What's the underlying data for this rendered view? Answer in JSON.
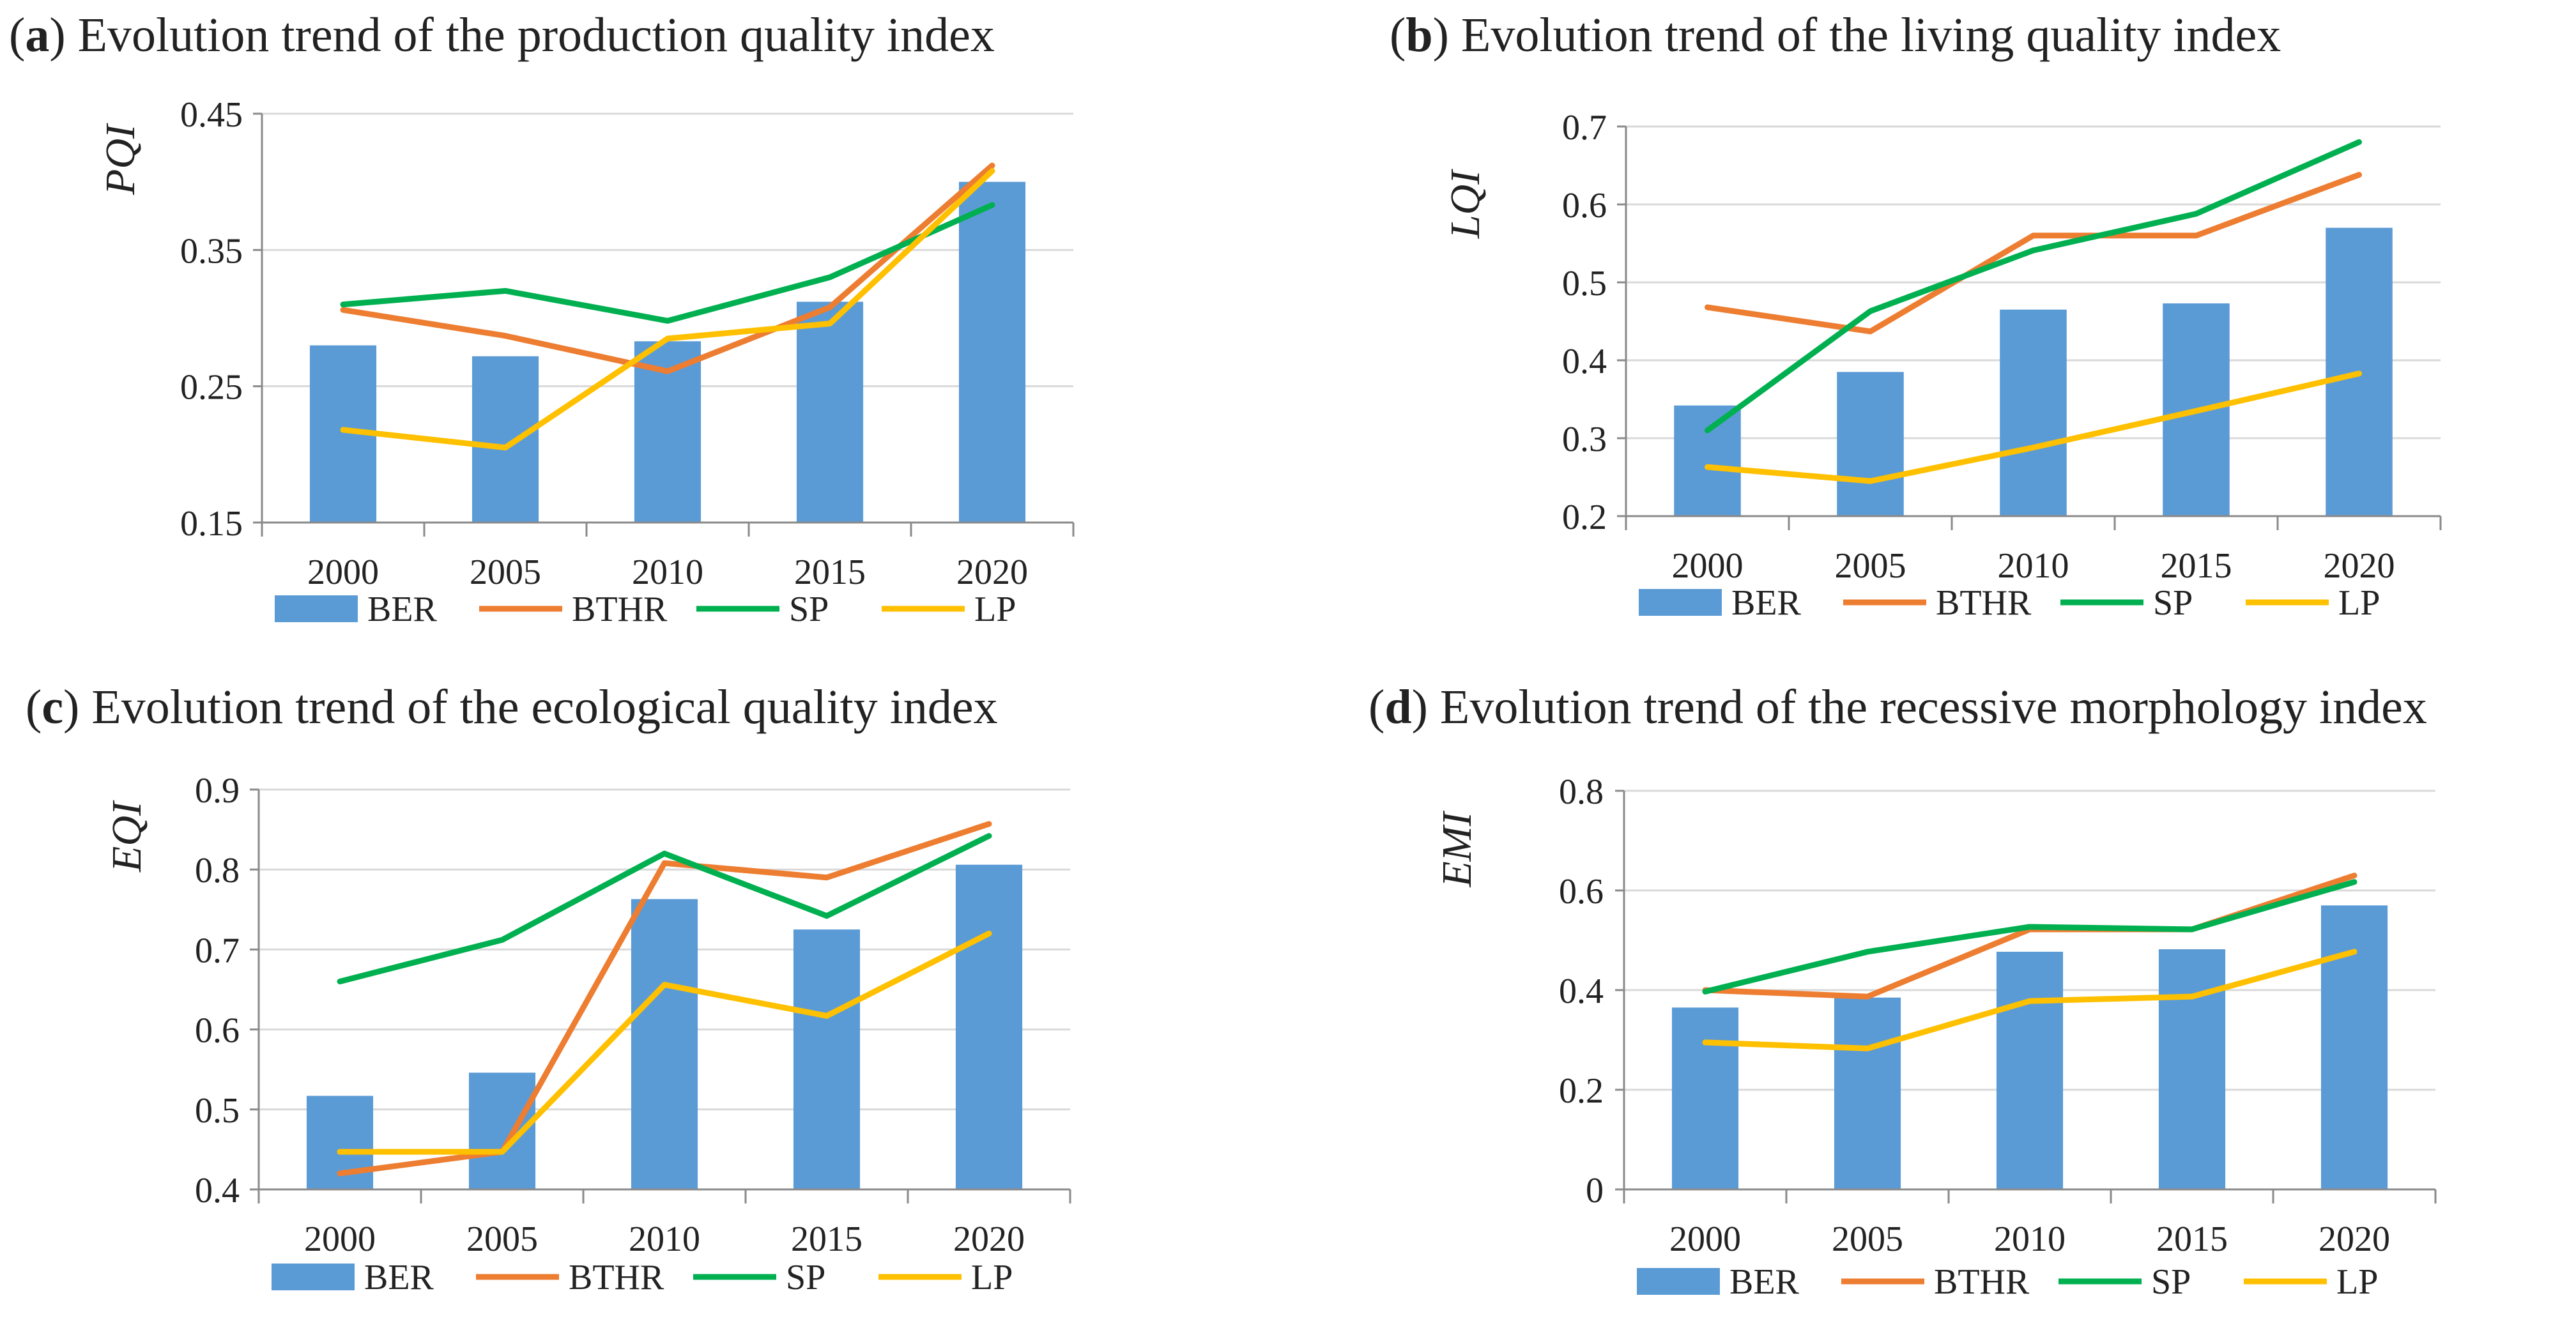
{
  "colors": {
    "BER": "#5b9bd5",
    "BTHR": "#ed7d31",
    "SP": "#00b050",
    "LP": "#ffc000"
  },
  "chart_data": [
    {
      "type": "bar+line",
      "panel_letter": "a",
      "title": "Evolution trend of the production quality index",
      "ylabel": "PQI",
      "categories": [
        "2000",
        "2005",
        "2010",
        "2015",
        "2020"
      ],
      "ylim": [
        0.15,
        0.45
      ],
      "yticks": [
        "0.15",
        "0.25",
        "0.35",
        "0.45"
      ],
      "series": [
        {
          "name": "BER",
          "kind": "bar",
          "values": [
            0.28,
            0.272,
            0.283,
            0.312,
            0.4
          ]
        },
        {
          "name": "BTHR",
          "kind": "line",
          "values": [
            0.306,
            0.287,
            0.261,
            0.308,
            0.412
          ]
        },
        {
          "name": "SP",
          "kind": "line",
          "values": [
            0.31,
            0.32,
            0.298,
            0.33,
            0.383
          ]
        },
        {
          "name": "LP",
          "kind": "line",
          "values": [
            0.218,
            0.205,
            0.285,
            0.296,
            0.408
          ]
        }
      ]
    },
    {
      "type": "bar+line",
      "panel_letter": "b",
      "title": "Evolution trend of the living quality index",
      "ylabel": "LQI",
      "categories": [
        "2000",
        "2005",
        "2010",
        "2015",
        "2020"
      ],
      "ylim": [
        0.2,
        0.7
      ],
      "yticks": [
        "0.2",
        "0.3",
        "0.4",
        "0.5",
        "0.6",
        "0.7"
      ],
      "series": [
        {
          "name": "BER",
          "kind": "bar",
          "values": [
            0.342,
            0.385,
            0.465,
            0.473,
            0.57
          ]
        },
        {
          "name": "BTHR",
          "kind": "line",
          "values": [
            0.468,
            0.437,
            0.56,
            0.56,
            0.638
          ]
        },
        {
          "name": "SP",
          "kind": "line",
          "values": [
            0.31,
            0.463,
            0.541,
            0.588,
            0.68
          ]
        },
        {
          "name": "LP",
          "kind": "line",
          "values": [
            0.263,
            0.245,
            0.288,
            0.335,
            0.383
          ]
        }
      ]
    },
    {
      "type": "bar+line",
      "panel_letter": "c",
      "title": "Evolution trend of the ecological quality index",
      "ylabel": "EQI",
      "categories": [
        "2000",
        "2005",
        "2010",
        "2015",
        "2020"
      ],
      "ylim": [
        0.4,
        0.9
      ],
      "yticks": [
        "0.4",
        "0.5",
        "0.6",
        "0.7",
        "0.8",
        "0.9"
      ],
      "series": [
        {
          "name": "BER",
          "kind": "bar",
          "values": [
            0.517,
            0.546,
            0.763,
            0.725,
            0.806
          ]
        },
        {
          "name": "BTHR",
          "kind": "line",
          "values": [
            0.42,
            0.447,
            0.808,
            0.79,
            0.857
          ]
        },
        {
          "name": "SP",
          "kind": "line",
          "values": [
            0.66,
            0.712,
            0.82,
            0.742,
            0.842
          ]
        },
        {
          "name": "LP",
          "kind": "line",
          "values": [
            0.447,
            0.447,
            0.656,
            0.617,
            0.72
          ]
        }
      ]
    },
    {
      "type": "bar+line",
      "panel_letter": "d",
      "title": "Evolution trend of the recessive morphology index",
      "ylabel": "EMI",
      "categories": [
        "2000",
        "2005",
        "2010",
        "2015",
        "2020"
      ],
      "ylim": [
        0,
        0.8
      ],
      "yticks": [
        "0",
        "0.2",
        "0.4",
        "0.6",
        "0.8"
      ],
      "series": [
        {
          "name": "BER",
          "kind": "bar",
          "values": [
            0.365,
            0.385,
            0.477,
            0.482,
            0.57
          ]
        },
        {
          "name": "BTHR",
          "kind": "line",
          "values": [
            0.4,
            0.387,
            0.522,
            0.522,
            0.63
          ]
        },
        {
          "name": "SP",
          "kind": "line",
          "values": [
            0.397,
            0.477,
            0.527,
            0.522,
            0.617
          ]
        },
        {
          "name": "LP",
          "kind": "line",
          "values": [
            0.295,
            0.283,
            0.378,
            0.387,
            0.477
          ]
        }
      ]
    }
  ]
}
